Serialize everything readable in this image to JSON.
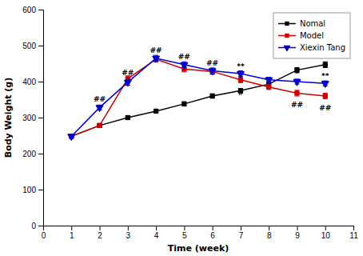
{
  "chart_data": {
    "type": "line",
    "x": [
      1,
      2,
      3,
      4,
      5,
      6,
      7,
      8,
      9,
      10
    ],
    "series": [
      {
        "name": "Nomal",
        "color": "#000000",
        "marker": "square",
        "values": [
          248,
          278,
          300,
          318,
          338,
          360,
          375,
          393,
          432,
          447
        ],
        "errors": [
          4,
          5,
          5,
          5,
          6,
          6,
          6,
          7,
          7,
          8
        ]
      },
      {
        "name": "Model",
        "color": "#cc0000",
        "marker": "square",
        "values": [
          248,
          278,
          408,
          462,
          435,
          428,
          405,
          385,
          368,
          360
        ],
        "errors": [
          4,
          5,
          8,
          8,
          8,
          8,
          8,
          7,
          8,
          8
        ]
      },
      {
        "name": "Xiexin Tang",
        "color": "#0000cc",
        "marker": "triangle-down",
        "values": [
          248,
          328,
          398,
          465,
          447,
          430,
          422,
          405,
          400,
          395
        ],
        "errors": [
          4,
          7,
          8,
          8,
          8,
          8,
          8,
          7,
          7,
          7
        ]
      }
    ],
    "xlabel": "Time (week)",
    "ylabel": "Body Weight (g)",
    "xlim": [
      0,
      11
    ],
    "xticks": [
      0,
      1,
      2,
      3,
      4,
      5,
      6,
      7,
      8,
      9,
      10,
      11
    ],
    "ylim": [
      0,
      600
    ],
    "yticks": [
      0,
      100,
      200,
      300,
      400,
      500,
      600
    ],
    "grid": false,
    "legend": "upper right",
    "annotations": [
      {
        "text": "##",
        "x": 2,
        "y": 345
      },
      {
        "text": "##",
        "x": 3,
        "y": 418
      },
      {
        "text": "##",
        "x": 4,
        "y": 480
      },
      {
        "text": "##",
        "x": 5,
        "y": 462
      },
      {
        "text": "##",
        "x": 6,
        "y": 445
      },
      {
        "text": "**",
        "x": 7,
        "y": 436
      },
      {
        "text": "#",
        "x": 7,
        "y": 362
      },
      {
        "text": "*",
        "x": 9,
        "y": 415
      },
      {
        "text": "##",
        "x": 9,
        "y": 330
      },
      {
        "text": "**",
        "x": 10,
        "y": 408
      },
      {
        "text": "##",
        "x": 10,
        "y": 320
      }
    ]
  }
}
